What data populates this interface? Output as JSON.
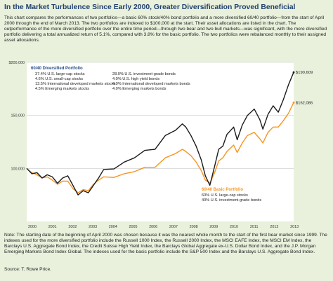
{
  "header": {
    "title": "In the Market Turbulence Since Early 2000, Greater Diversification Proved Beneficial",
    "intro": "This chart compares the performances of two portfolios—a basic 60% stock/40% bond portfolio and a more diversified 60/40 portfolio—from the start of April 2000 through the end of March 2013. The two portfolios are indexed to $100,000 at the start. Their asset allocations are listed in the chart. The outperformance of the more diversified portfolio over the entire time period—through two bear and two bull markets—was significant, with the more diversified portfolio delivering a total annualized return of 5.1%, compared with 3.8% for the basic portfolio. The two portfolios were rebalanced monthly to their assigned asset allocations."
  },
  "footer": {
    "note": "Note: The starting date of the beginning of April 2000 was chosen because it was the nearest whole month to the start of the first bear market since 1999. The indexes used for the more diversified portfolio include the Russell 1000 Index, the Russell 2000 Index, the MSCI EAFE Index, the MSCI EM Index, the Barclays U.S. Aggregate Bond Index, the Credit Suisse High Yield Index, the Barclays Global Aggregate ex-U.S. Dollar Bond Index, and the J.P. Morgan Emerging Markets Bond Index Global. The indexes used for the basic portfolio include the S&P 500 Index and the Barclays U.S. Aggregate Bond Index.",
    "source": "Source: T. Rowe Price."
  },
  "colors": {
    "diversified": "#1c1c1c",
    "basic": "#f7941d",
    "legend_heading": "#2b4f86",
    "basic_heading": "#f7941d",
    "panel_bg": "#e9f1dc",
    "plot_bg": "#ffffff"
  },
  "chart_data": {
    "type": "line",
    "xlim": [
      2000.25,
      2013.25
    ],
    "ylim": [
      50000,
      200000
    ],
    "y_ticks": [
      {
        "value": 200000,
        "label": "$200,000"
      },
      {
        "value": 150000,
        "label": "150,000"
      },
      {
        "value": 100000,
        "label": "100,000"
      }
    ],
    "x_ticks": [
      "2000",
      "2001",
      "2002",
      "2003",
      "2004",
      "2005",
      "2006",
      "2007",
      "2008",
      "2009",
      "2010",
      "2011",
      "2012",
      "2013"
    ],
    "legend": {
      "diversified": {
        "heading": "60/40 Diversified Portfolio",
        "col1": [
          "37.4% U.S. large-cap stocks",
          "4.6% U.S. small-cap stocks",
          "13.5% International developed markets stocks",
          "4.5% Emerging markets stocks"
        ],
        "col2": [
          "28.0% U.S. investment-grade bonds",
          "4.0% U.S. high yield bonds",
          "4.0% International developed markets bonds",
          "4.0% Emerging markets bonds"
        ]
      },
      "basic": {
        "heading": "60/40 Basic Portfolio",
        "items": [
          "60% U.S. large-cap stocks",
          "40% U.S. investment-grade bonds"
        ]
      }
    },
    "series": [
      {
        "key": "diversified",
        "end_label": "$190,609",
        "x": [
          2000.25,
          2000.5,
          2000.75,
          2001.0,
          2001.25,
          2001.5,
          2001.75,
          2002.0,
          2002.25,
          2002.5,
          2002.75,
          2003.0,
          2003.25,
          2003.5,
          2003.75,
          2004.0,
          2004.5,
          2005.0,
          2005.5,
          2006.0,
          2006.5,
          2007.0,
          2007.5,
          2007.83,
          2008.0,
          2008.25,
          2008.5,
          2008.75,
          2008.95,
          2009.17,
          2009.4,
          2009.6,
          2009.8,
          2010.0,
          2010.33,
          2010.5,
          2010.75,
          2011.0,
          2011.33,
          2011.6,
          2011.75,
          2012.0,
          2012.25,
          2012.5,
          2012.75,
          2013.0,
          2013.25
        ],
        "y": [
          100000,
          95000,
          96000,
          91000,
          94000,
          92000,
          86000,
          91000,
          93000,
          84000,
          75000,
          79000,
          77000,
          84000,
          91000,
          99000,
          99500,
          106000,
          110000,
          117000,
          118000,
          131000,
          136000,
          142000,
          139000,
          131000,
          121000,
          108000,
          93000,
          84000,
          102000,
          118000,
          121000,
          132000,
          139000,
          127000,
          141000,
          150000,
          156000,
          146000,
          137000,
          151000,
          159000,
          153000,
          165000,
          179000,
          190609
        ]
      },
      {
        "key": "basic",
        "end_label": "$162,086",
        "x": [
          2000.25,
          2000.5,
          2000.75,
          2001.0,
          2001.25,
          2001.5,
          2001.75,
          2002.0,
          2002.25,
          2002.5,
          2002.75,
          2003.0,
          2003.25,
          2003.5,
          2003.75,
          2004.0,
          2004.5,
          2005.0,
          2005.5,
          2006.0,
          2006.5,
          2007.0,
          2007.5,
          2007.83,
          2008.0,
          2008.25,
          2008.5,
          2008.75,
          2008.95,
          2009.17,
          2009.4,
          2009.6,
          2009.8,
          2010.0,
          2010.33,
          2010.5,
          2010.75,
          2011.0,
          2011.33,
          2011.6,
          2011.75,
          2012.0,
          2012.25,
          2012.5,
          2012.75,
          2013.0,
          2013.25
        ],
        "y": [
          100000,
          96000,
          94000,
          91000,
          92000,
          89000,
          85000,
          88000,
          88000,
          81000,
          77000,
          80000,
          79000,
          85000,
          89000,
          92000,
          91500,
          95000,
          97000,
          101000,
          101000,
          110000,
          114000,
          118000,
          116000,
          112000,
          106000,
          98000,
          89000,
          86000,
          96000,
          107000,
          110000,
          116000,
          122000,
          115000,
          124000,
          131000,
          134000,
          128000,
          124000,
          134000,
          139000,
          139000,
          145000,
          152000,
          162086
        ]
      }
    ]
  }
}
